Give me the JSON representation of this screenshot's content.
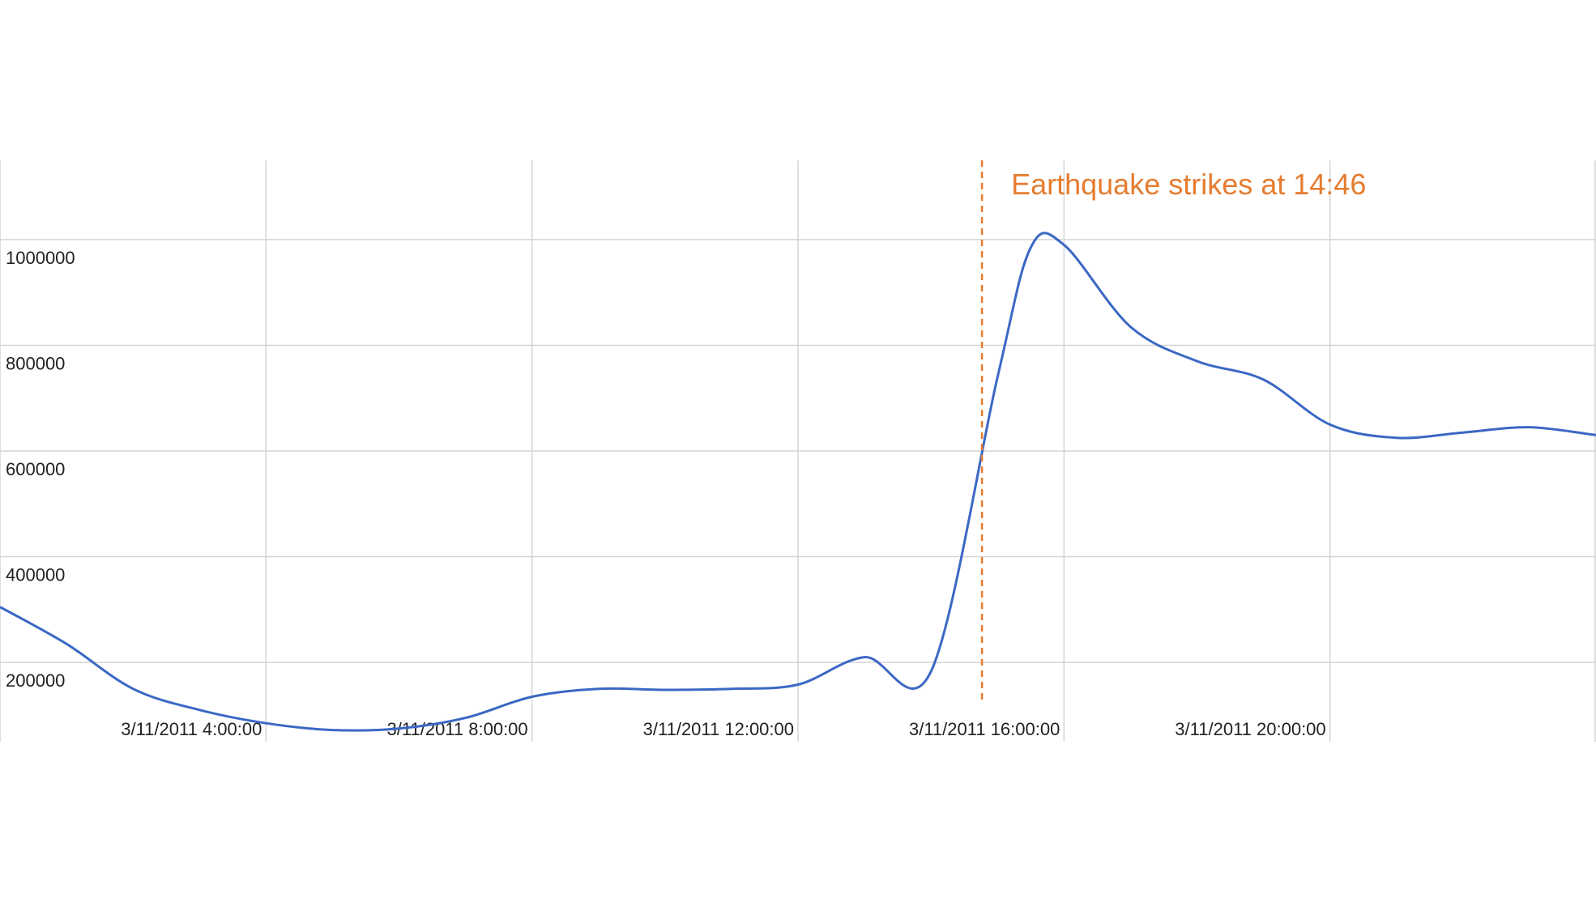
{
  "chart_data": {
    "type": "line",
    "title": "",
    "xlabel": "",
    "ylabel": "",
    "grid": true,
    "legend": "none",
    "x_axis": {
      "type": "time",
      "min": "3/11/2011 0:00:00",
      "max": "3/12/2011 0:00:00",
      "ticks": [
        "3/11/2011 4:00:00",
        "3/11/2011 8:00:00",
        "3/11/2011 12:00:00",
        "3/11/2011 16:00:00",
        "3/11/2011 20:00:00"
      ]
    },
    "y_axis": {
      "min": 50000,
      "max": 1150000,
      "ticks": [
        200000,
        400000,
        600000,
        800000,
        1000000
      ],
      "tick_labels": [
        "200000",
        "400000",
        "600000",
        "800000",
        "1000000"
      ]
    },
    "series": [
      {
        "color": "#3b68c4",
        "points": [
          {
            "x": "3/11/2011 0:00",
            "y": 305000
          },
          {
            "x": "3/11/2011 1:00",
            "y": 235000
          },
          {
            "x": "3/11/2011 2:00",
            "y": 150000
          },
          {
            "x": "3/11/2011 3:00",
            "y": 110000
          },
          {
            "x": "3/11/2011 4:00",
            "y": 85000
          },
          {
            "x": "3/11/2011 5:00",
            "y": 72000
          },
          {
            "x": "3/11/2011 6:00",
            "y": 75000
          },
          {
            "x": "3/11/2011 7:00",
            "y": 95000
          },
          {
            "x": "3/11/2011 8:00",
            "y": 135000
          },
          {
            "x": "3/11/2011 9:00",
            "y": 150000
          },
          {
            "x": "3/11/2011 10:00",
            "y": 148000
          },
          {
            "x": "3/11/2011 11:00",
            "y": 150000
          },
          {
            "x": "3/11/2011 12:00",
            "y": 158000
          },
          {
            "x": "3/11/2011 13:00",
            "y": 210000
          },
          {
            "x": "3/11/2011 14:00",
            "y": 183000
          },
          {
            "x": "3/11/2011 15:00",
            "y": 740000
          },
          {
            "x": "3/11/2011 15:30",
            "y": 985000
          },
          {
            "x": "3/11/2011 16:00",
            "y": 990000
          },
          {
            "x": "3/11/2011 17:00",
            "y": 835000
          },
          {
            "x": "3/11/2011 18:00",
            "y": 770000
          },
          {
            "x": "3/11/2011 19:00",
            "y": 735000
          },
          {
            "x": "3/11/2011 20:00",
            "y": 650000
          },
          {
            "x": "3/11/2011 21:00",
            "y": 625000
          },
          {
            "x": "3/11/2011 22:00",
            "y": 635000
          },
          {
            "x": "3/11/2011 23:00",
            "y": 645000
          },
          {
            "x": "3/12/2011 0:00",
            "y": 630000
          }
        ]
      }
    ],
    "annotations": [
      {
        "type": "vertical-line",
        "x": "3/11/2011 14:46",
        "style": "dashed",
        "color": "#e57c2f",
        "label": "Earthquake strikes at 14:46"
      }
    ]
  }
}
